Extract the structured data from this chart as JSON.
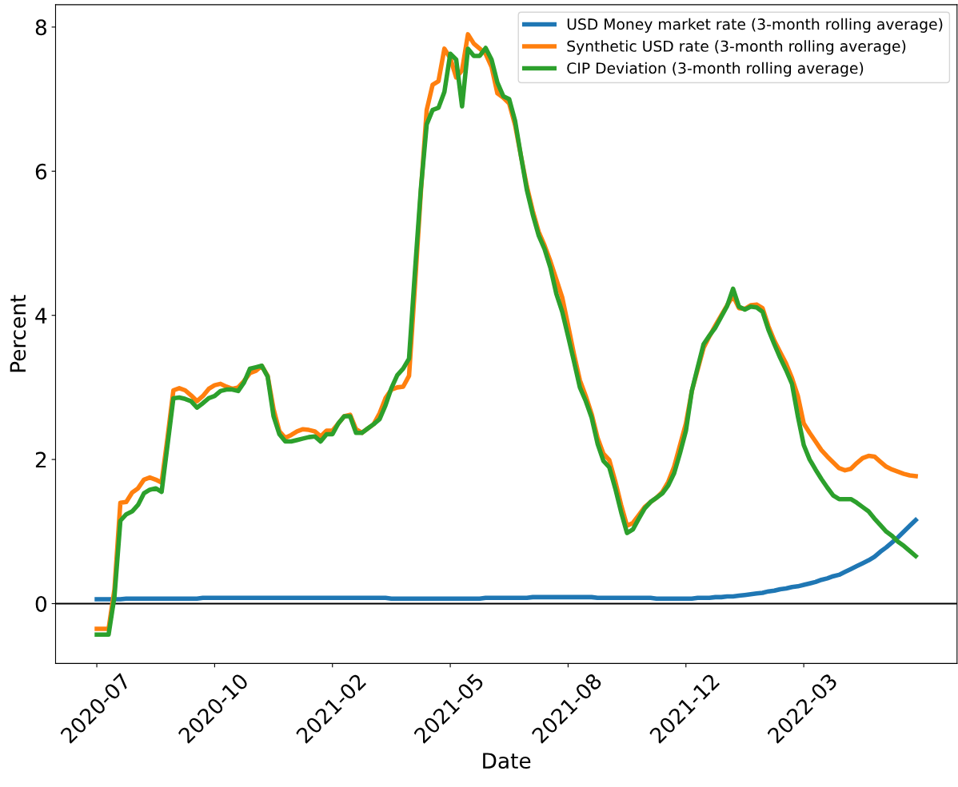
{
  "chart_data": {
    "type": "line",
    "xlabel": "Date",
    "ylabel": "Percent",
    "ylim": [
      -0.83,
      8.31
    ],
    "yticks": [
      0,
      2,
      4,
      6,
      8
    ],
    "grid": false,
    "legend": "top right",
    "line_style": "solid",
    "marker": "none",
    "categories": [
      "2020-07",
      null,
      null,
      null,
      null,
      null,
      null,
      null,
      null,
      null,
      null,
      null,
      null,
      null,
      null,
      null,
      null,
      null,
      null,
      null,
      "2020-10",
      null,
      null,
      null,
      null,
      null,
      null,
      null,
      null,
      null,
      null,
      null,
      null,
      null,
      null,
      null,
      null,
      null,
      null,
      null,
      "2021-02",
      null,
      null,
      null,
      null,
      null,
      null,
      null,
      null,
      null,
      null,
      null,
      null,
      null,
      null,
      null,
      null,
      null,
      null,
      null,
      "2021-05",
      null,
      null,
      null,
      null,
      null,
      null,
      null,
      null,
      null,
      null,
      null,
      null,
      null,
      null,
      null,
      null,
      null,
      null,
      null,
      "2021-08",
      null,
      null,
      null,
      null,
      null,
      null,
      null,
      null,
      null,
      null,
      null,
      null,
      null,
      null,
      null,
      null,
      null,
      null,
      null,
      "2021-12",
      null,
      null,
      null,
      null,
      null,
      null,
      null,
      null,
      null,
      null,
      null,
      null,
      null,
      null,
      null,
      null,
      null,
      null,
      null,
      "2022-03",
      null,
      null,
      null,
      null,
      null,
      null,
      null,
      null,
      null,
      null,
      null,
      null,
      null,
      null,
      null,
      null,
      null,
      null,
      null,
      null
    ],
    "ref_lines": [
      {
        "axis": "y",
        "value": 0,
        "label": null,
        "color": "#000000"
      }
    ],
    "series": [
      {
        "name": "USD Money market rate (3-month rolling average)",
        "color": "#1f77b4",
        "values": [
          0.06,
          0.06,
          0.06,
          0.06,
          0.06,
          0.07,
          0.07,
          0.07,
          0.07,
          0.07,
          0.07,
          0.07,
          0.07,
          0.07,
          0.07,
          0.07,
          0.07,
          0.07,
          0.08,
          0.08,
          0.08,
          0.08,
          0.08,
          0.08,
          0.08,
          0.08,
          0.08,
          0.08,
          0.08,
          0.08,
          0.08,
          0.08,
          0.08,
          0.08,
          0.08,
          0.08,
          0.08,
          0.08,
          0.08,
          0.08,
          0.08,
          0.08,
          0.08,
          0.08,
          0.08,
          0.08,
          0.08,
          0.08,
          0.08,
          0.08,
          0.07,
          0.07,
          0.07,
          0.07,
          0.07,
          0.07,
          0.07,
          0.07,
          0.07,
          0.07,
          0.07,
          0.07,
          0.07,
          0.07,
          0.07,
          0.07,
          0.08,
          0.08,
          0.08,
          0.08,
          0.08,
          0.08,
          0.08,
          0.08,
          0.09,
          0.09,
          0.09,
          0.09,
          0.09,
          0.09,
          0.09,
          0.09,
          0.09,
          0.09,
          0.09,
          0.08,
          0.08,
          0.08,
          0.08,
          0.08,
          0.08,
          0.08,
          0.08,
          0.08,
          0.08,
          0.07,
          0.07,
          0.07,
          0.07,
          0.07,
          0.07,
          0.07,
          0.08,
          0.08,
          0.08,
          0.09,
          0.09,
          0.1,
          0.1,
          0.11,
          0.12,
          0.13,
          0.14,
          0.15,
          0.17,
          0.18,
          0.2,
          0.21,
          0.23,
          0.24,
          0.26,
          0.28,
          0.3,
          0.33,
          0.35,
          0.38,
          0.4,
          0.44,
          0.48,
          0.52,
          0.56,
          0.6,
          0.65,
          0.72,
          0.78,
          0.85,
          0.92,
          1.0,
          1.08,
          1.16,
          null
        ]
      },
      {
        "name": "Synthetic USD rate (3-month rolling average)",
        "color": "#ff7f0e",
        "values": [
          -0.35,
          -0.35,
          -0.35,
          0.2,
          1.4,
          1.41,
          1.54,
          1.6,
          1.72,
          1.75,
          1.72,
          1.68,
          2.3,
          2.96,
          2.99,
          2.96,
          2.89,
          2.81,
          2.88,
          2.98,
          3.03,
          3.05,
          3.01,
          2.98,
          3.0,
          3.09,
          3.2,
          3.23,
          3.3,
          3.16,
          2.7,
          2.39,
          2.3,
          2.34,
          2.39,
          2.42,
          2.41,
          2.39,
          2.32,
          2.4,
          2.4,
          2.5,
          2.6,
          2.62,
          2.42,
          2.37,
          2.43,
          2.49,
          2.64,
          2.85,
          2.97,
          3.0,
          3.01,
          3.16,
          4.4,
          5.7,
          6.85,
          7.2,
          7.25,
          7.7,
          7.57,
          7.3,
          7.4,
          7.9,
          7.77,
          7.7,
          7.63,
          7.45,
          7.08,
          7.02,
          6.94,
          6.64,
          6.21,
          5.79,
          5.45,
          5.16,
          4.97,
          4.75,
          4.5,
          4.25,
          3.86,
          3.46,
          3.1,
          2.88,
          2.63,
          2.3,
          2.08,
          1.99,
          1.7,
          1.37,
          1.08,
          1.12,
          1.23,
          1.34,
          1.41,
          1.47,
          1.55,
          1.69,
          1.9,
          2.2,
          2.5,
          2.95,
          3.25,
          3.55,
          3.71,
          3.86,
          4.0,
          4.14,
          4.27,
          4.1,
          4.09,
          4.14,
          4.15,
          4.1,
          3.85,
          3.65,
          3.49,
          3.33,
          3.13,
          2.88,
          2.5,
          2.37,
          2.25,
          2.13,
          2.04,
          1.96,
          1.88,
          1.85,
          1.87,
          1.95,
          2.02,
          2.05,
          2.04,
          1.97,
          1.9,
          1.86,
          1.83,
          1.8,
          1.78,
          1.77,
          null
        ]
      },
      {
        "name": "CIP Deviation (3-month rolling average)",
        "color": "#2ca02c",
        "values": [
          -0.43,
          -0.43,
          -0.43,
          0.1,
          1.15,
          1.24,
          1.28,
          1.37,
          1.53,
          1.58,
          1.6,
          1.55,
          2.2,
          2.85,
          2.86,
          2.84,
          2.81,
          2.72,
          2.78,
          2.85,
          2.88,
          2.95,
          2.97,
          2.97,
          2.95,
          3.07,
          3.26,
          3.28,
          3.3,
          3.15,
          2.6,
          2.35,
          2.25,
          2.25,
          2.27,
          2.29,
          2.31,
          2.32,
          2.25,
          2.35,
          2.35,
          2.5,
          2.6,
          2.6,
          2.37,
          2.37,
          2.43,
          2.49,
          2.56,
          2.75,
          2.99,
          3.17,
          3.26,
          3.4,
          4.6,
          5.75,
          6.65,
          6.85,
          6.88,
          7.1,
          7.63,
          7.55,
          6.9,
          7.7,
          7.6,
          7.6,
          7.71,
          7.55,
          7.23,
          7.04,
          7.0,
          6.7,
          6.21,
          5.74,
          5.4,
          5.11,
          4.92,
          4.66,
          4.3,
          4.05,
          3.71,
          3.36,
          3.0,
          2.81,
          2.58,
          2.22,
          1.98,
          1.89,
          1.6,
          1.27,
          0.98,
          1.03,
          1.18,
          1.32,
          1.41,
          1.47,
          1.53,
          1.64,
          1.81,
          2.09,
          2.4,
          2.95,
          3.28,
          3.6,
          3.72,
          3.83,
          3.98,
          4.13,
          4.37,
          4.12,
          4.08,
          4.12,
          4.11,
          4.05,
          3.8,
          3.6,
          3.41,
          3.24,
          3.05,
          2.6,
          2.2,
          2.0,
          1.86,
          1.73,
          1.61,
          1.5,
          1.45,
          1.45,
          1.45,
          1.4,
          1.34,
          1.28,
          1.18,
          1.09,
          1.0,
          0.94,
          0.86,
          0.8,
          0.73,
          0.66,
          null
        ]
      }
    ]
  }
}
